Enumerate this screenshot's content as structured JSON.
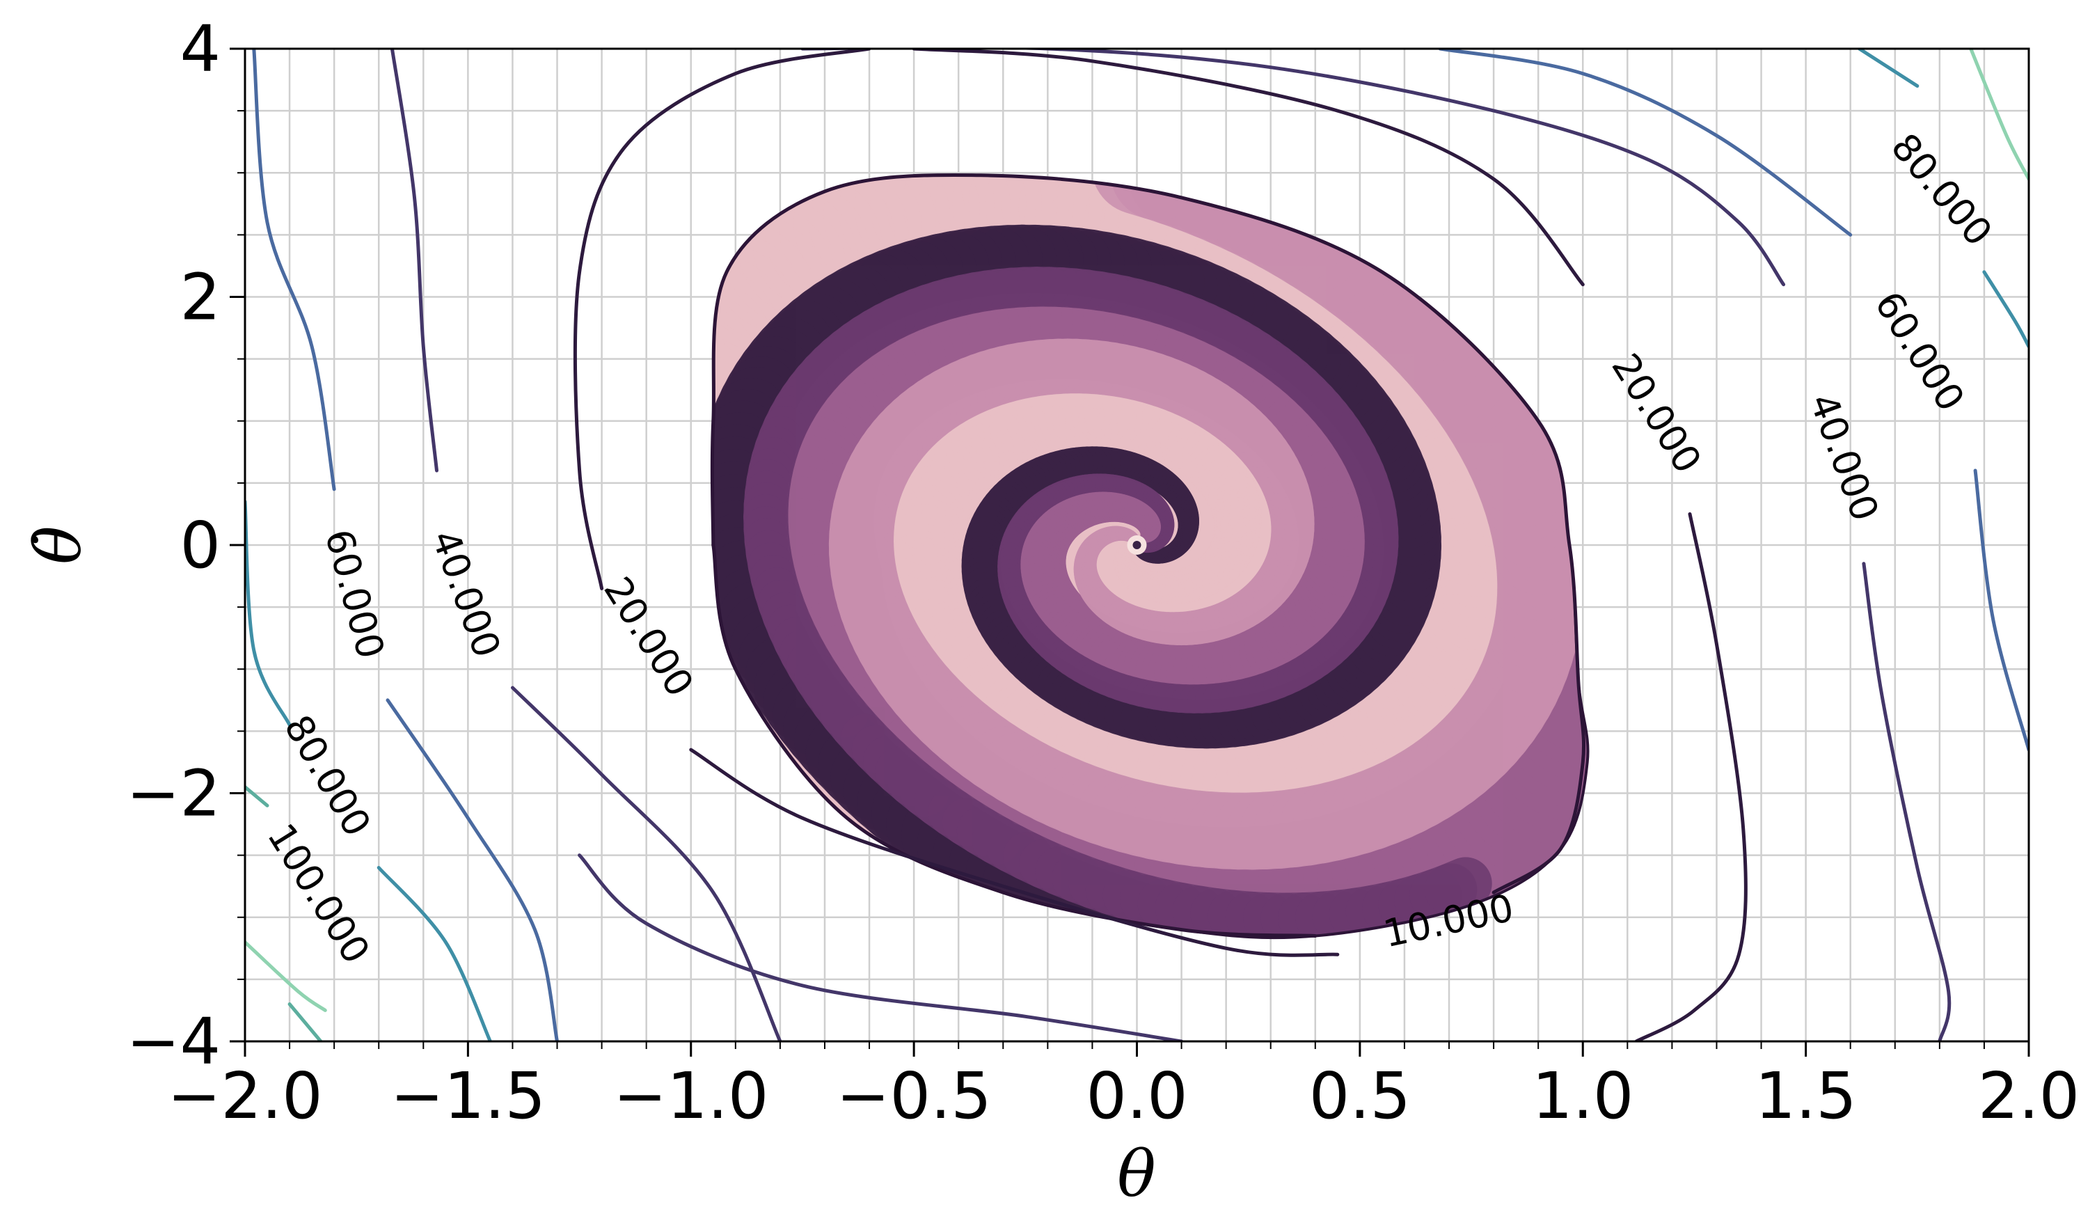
{
  "chart_data": {
    "type": "contour",
    "xlabel": "θ",
    "ylabel": "θ̇",
    "xlim": [
      -2.0,
      2.0
    ],
    "ylim": [
      -4,
      4
    ],
    "grid": true,
    "xticks": [
      "−2.0",
      "−1.5",
      "−1.0",
      "−0.5",
      "0.0",
      "0.5",
      "1.0",
      "1.5",
      "2.0"
    ],
    "xtick_values": [
      -2.0,
      -1.5,
      -1.0,
      -0.5,
      0.0,
      0.5,
      1.0,
      1.5,
      2.0
    ],
    "yticks": [
      "−4",
      "−2",
      "0",
      "2",
      "4"
    ],
    "ytick_values": [
      -4,
      -2,
      0,
      2,
      4
    ],
    "contour_labels": [
      {
        "text": "10.000",
        "x": 0.7,
        "y": -3.05,
        "angle": -12,
        "level": 10
      },
      {
        "text": "20.000",
        "x": -1.1,
        "y": -0.75,
        "angle": 58,
        "level": 20
      },
      {
        "text": "20.000",
        "x": 1.16,
        "y": 1.05,
        "angle": 58,
        "level": 20
      },
      {
        "text": "40.000",
        "x": -1.51,
        "y": -0.4,
        "angle": 70,
        "level": 40
      },
      {
        "text": "40.000",
        "x": 1.58,
        "y": 0.7,
        "angle": 70,
        "level": 40
      },
      {
        "text": "60.000",
        "x": -1.76,
        "y": -0.4,
        "angle": 75,
        "level": 60
      },
      {
        "text": "60.000",
        "x": 1.75,
        "y": 1.55,
        "angle": 58,
        "level": 60
      },
      {
        "text": "80.000",
        "x": -1.82,
        "y": -1.87,
        "angle": 60,
        "level": 80
      },
      {
        "text": "80.000",
        "x": 1.8,
        "y": 2.85,
        "angle": 50,
        "level": 80
      },
      {
        "text": "100.000",
        "x": -1.84,
        "y": -2.82,
        "angle": 58,
        "level": 100
      }
    ],
    "contour_lines": [
      {
        "level": 10,
        "color": "#2c1437",
        "points": [
          [
            -0.95,
            0.0
          ],
          [
            -0.95,
            1.0
          ],
          [
            -0.92,
            2.2
          ],
          [
            -0.7,
            2.85
          ],
          [
            -0.35,
            2.98
          ],
          [
            0.1,
            2.8
          ],
          [
            0.55,
            2.2
          ],
          [
            0.9,
            1.0
          ],
          [
            0.97,
            0.0
          ],
          [
            0.99,
            -1.1
          ],
          [
            1.0,
            -1.75
          ],
          [
            0.95,
            -2.45
          ],
          [
            0.8,
            -2.8
          ]
        ]
      },
      {
        "level": 10,
        "color": "#2c1437",
        "points": [
          [
            0.4,
            -3.15
          ],
          [
            0.1,
            -3.1
          ],
          [
            -0.3,
            -2.8
          ],
          [
            -0.65,
            -2.2
          ],
          [
            -0.9,
            -1.0
          ],
          [
            -0.95,
            0.0
          ]
        ]
      },
      {
        "level": 20,
        "color": "#2d1a3e",
        "points": [
          [
            -1.2,
            -0.35
          ],
          [
            -1.25,
            0.6
          ],
          [
            -1.25,
            2.2
          ],
          [
            -1.15,
            3.2
          ],
          [
            -0.9,
            3.8
          ],
          [
            -0.6,
            4.0
          ]
        ]
      },
      {
        "level": 20,
        "color": "#2d1a3e",
        "points": [
          [
            -1.0,
            -1.65
          ],
          [
            -0.75,
            -2.2
          ],
          [
            -0.3,
            -2.75
          ],
          [
            0.2,
            -3.25
          ],
          [
            0.45,
            -3.3
          ]
        ]
      },
      {
        "level": 20,
        "color": "#2d1a3e",
        "points": [
          [
            -0.5,
            4.0
          ],
          [
            -0.1,
            3.9
          ],
          [
            0.45,
            3.5
          ],
          [
            0.8,
            2.95
          ],
          [
            1.0,
            2.1
          ]
        ]
      },
      {
        "level": 20,
        "color": "#2d1a3e",
        "points": [
          [
            1.24,
            0.25
          ],
          [
            1.3,
            -0.8
          ],
          [
            1.36,
            -2.3
          ],
          [
            1.35,
            -3.3
          ],
          [
            1.25,
            -3.75
          ],
          [
            1.12,
            -4.0
          ]
        ]
      },
      {
        "level": 40,
        "color": "#433669",
        "points": [
          [
            -1.67,
            4.0
          ],
          [
            -1.62,
            2.8
          ],
          [
            -1.6,
            1.6
          ],
          [
            -1.57,
            0.6
          ]
        ]
      },
      {
        "level": 40,
        "color": "#433669",
        "points": [
          [
            -1.4,
            -1.15
          ],
          [
            -1.2,
            -1.85
          ],
          [
            -0.95,
            -2.8
          ],
          [
            -0.8,
            -4.0
          ]
        ]
      },
      {
        "level": 40,
        "color": "#433669",
        "points": [
          [
            0.1,
            -4.0
          ],
          [
            -0.25,
            -3.8
          ],
          [
            -0.75,
            -3.55
          ],
          [
            -1.1,
            -3.05
          ],
          [
            -1.25,
            -2.5
          ]
        ]
      },
      {
        "level": 40,
        "color": "#433669",
        "points": [
          [
            -0.75,
            4.0
          ],
          [
            -0.2,
            4.0
          ],
          [
            0.3,
            3.85
          ],
          [
            0.8,
            3.5
          ],
          [
            1.15,
            3.1
          ],
          [
            1.35,
            2.6
          ],
          [
            1.45,
            2.1
          ]
        ]
      },
      {
        "level": 40,
        "color": "#433669",
        "points": [
          [
            1.63,
            -0.15
          ],
          [
            1.67,
            -1.2
          ],
          [
            1.75,
            -2.6
          ],
          [
            1.82,
            -3.6
          ],
          [
            1.8,
            -4.0
          ]
        ]
      },
      {
        "level": 60,
        "color": "#4a6aa0",
        "points": [
          [
            -1.98,
            4.0
          ],
          [
            -1.95,
            2.6
          ],
          [
            -1.85,
            1.6
          ],
          [
            -1.8,
            0.45
          ]
        ]
      },
      {
        "level": 60,
        "color": "#4a6aa0",
        "points": [
          [
            -1.68,
            -1.25
          ],
          [
            -1.5,
            -2.2
          ],
          [
            -1.35,
            -3.1
          ],
          [
            -1.3,
            -4.0
          ]
        ]
      },
      {
        "level": 60,
        "color": "#4a6aa0",
        "points": [
          [
            0.68,
            4.0
          ],
          [
            1.0,
            3.8
          ],
          [
            1.3,
            3.3
          ],
          [
            1.6,
            2.5
          ]
        ]
      },
      {
        "level": 60,
        "color": "#4a6aa0",
        "points": [
          [
            1.88,
            0.6
          ],
          [
            1.92,
            -0.6
          ],
          [
            2.0,
            -1.65
          ]
        ]
      },
      {
        "level": 80,
        "color": "#3f8fa6",
        "points": [
          [
            -2.0,
            0.35
          ],
          [
            -1.98,
            -0.85
          ],
          [
            -1.9,
            -1.45
          ]
        ]
      },
      {
        "level": 80,
        "color": "#3f8fa6",
        "points": [
          [
            -1.7,
            -2.6
          ],
          [
            -1.55,
            -3.2
          ],
          [
            -1.45,
            -4.0
          ]
        ]
      },
      {
        "level": 80,
        "color": "#3f8fa6",
        "points": [
          [
            1.62,
            4.0
          ],
          [
            1.75,
            3.7
          ]
        ]
      },
      {
        "level": 80,
        "color": "#3f8fa6",
        "points": [
          [
            1.9,
            2.2
          ],
          [
            1.97,
            1.8
          ],
          [
            2.0,
            1.6
          ]
        ]
      },
      {
        "level": 100,
        "color": "#5cae9e",
        "points": [
          [
            -1.9,
            -3.7
          ],
          [
            -1.83,
            -4.0
          ]
        ]
      },
      {
        "level": 100,
        "color": "#5cae9e",
        "points": [
          [
            -2.0,
            -1.95
          ],
          [
            -1.95,
            -2.1
          ]
        ]
      },
      {
        "level": 120,
        "color": "#8fd3b0",
        "points": [
          [
            -2.0,
            -3.2
          ],
          [
            -1.88,
            -3.6
          ],
          [
            -1.82,
            -3.75
          ]
        ]
      },
      {
        "level": 120,
        "color": "#8fd3b0",
        "points": [
          [
            1.87,
            4.0
          ],
          [
            1.95,
            3.3
          ],
          [
            2.0,
            2.95
          ]
        ]
      }
    ],
    "trajectory_region": {
      "outline": [
        [
          -0.95,
          0.0
        ],
        [
          -0.95,
          1.0
        ],
        [
          -0.92,
          2.2
        ],
        [
          -0.7,
          2.85
        ],
        [
          -0.35,
          2.98
        ],
        [
          0.1,
          2.8
        ],
        [
          0.55,
          2.2
        ],
        [
          0.9,
          1.0
        ],
        [
          0.97,
          0.0
        ],
        [
          0.99,
          -1.1
        ],
        [
          1.01,
          -1.75
        ],
        [
          0.95,
          -2.45
        ],
        [
          0.75,
          -2.9
        ],
        [
          0.4,
          -3.15
        ],
        [
          0.1,
          -3.1
        ],
        [
          -0.3,
          -2.8
        ],
        [
          -0.65,
          -2.2
        ],
        [
          -0.9,
          -1.0
        ]
      ],
      "center": [
        0.0,
        0.0
      ],
      "colors": [
        "#f6e2df",
        "#e8bfc5",
        "#c98fae",
        "#9b5e8f",
        "#6b3a6f",
        "#3a2245"
      ]
    }
  }
}
